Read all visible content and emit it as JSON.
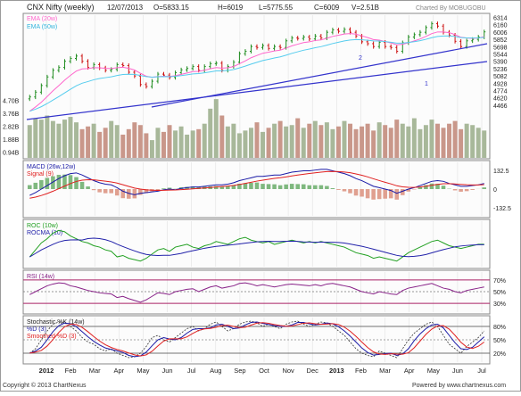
{
  "header": {
    "title": "CNX Nifty (weekly)",
    "date": "12/07/2013",
    "open": "O=5833.15",
    "high": "H=6019",
    "low": "L=5775.55",
    "close": "C=6009",
    "volume": "V=2.51B",
    "charted_by": "Charted By MOBUGOBU"
  },
  "footer": {
    "copyright": "Copyright © 2013 ChartNexus",
    "powered": "Powered by www.chartnexus.com"
  },
  "colors": {
    "up": "#1f8c1f",
    "down": "#cc1111",
    "ema20": "#ff66cc",
    "ema50": "#55ccee",
    "trend": "#3333cc",
    "vol_up": "#a8b89a",
    "vol_down": "#c9978a",
    "macd": "#1a1aa6",
    "signal": "#e02020",
    "hist_up": "#7fb87f",
    "hist_down": "#e0a090",
    "roc": "#22a022",
    "rocma": "#2222aa",
    "rsi": "#882288",
    "band": "#aa2266",
    "k": "#1a1aa6",
    "d_red": "#e02020",
    "kd_dash": "#333333"
  },
  "chart_data": [
    {
      "type": "candlestick",
      "title": "CNX Nifty (weekly)",
      "series": [
        {
          "name": "EMA (20w)"
        },
        {
          "name": "EMA (50w)"
        }
      ],
      "y_ticks": [
        4466,
        4620,
        4774,
        4928,
        5082,
        5236,
        5390,
        5544,
        5698,
        5852,
        6006,
        6160,
        6314
      ],
      "ylim": [
        4390,
        6360
      ],
      "annotations": [
        "1",
        "2"
      ],
      "price_path": [
        4640,
        4740,
        4880,
        5060,
        5200,
        5260,
        5390,
        5450,
        5500,
        5390,
        5260,
        5320,
        5250,
        5200,
        5220,
        5320,
        5300,
        5160,
        5080,
        4900,
        4860,
        4970,
        5120,
        5100,
        5050,
        5150,
        5210,
        5240,
        5280,
        5200,
        5280,
        5340,
        5350,
        5200,
        5280,
        5370,
        5550,
        5600,
        5700,
        5680,
        5720,
        5660,
        5700,
        5680,
        5820,
        5880,
        5870,
        5900,
        5860,
        5920,
        5880,
        6000,
        6050,
        6020,
        6060,
        6000,
        5920,
        5800,
        5760,
        5700,
        5790,
        5700,
        5680,
        5600,
        5780,
        5900,
        5950,
        6000,
        6100,
        6180,
        6130,
        6000,
        5940,
        5810,
        5700,
        5820,
        5850,
        5900,
        6009
      ]
    },
    {
      "type": "bar",
      "title": "Volume",
      "y_ticks": [
        "0.94B",
        "1.88B",
        "2.82B",
        "3.76B",
        "4.70B"
      ],
      "ylim": [
        0.5,
        5.2
      ],
      "values": [
        2.9,
        3.4,
        3.3,
        3.6,
        3.2,
        3.0,
        3.3,
        3.5,
        3.1,
        2.6,
        2.8,
        3.0,
        2.4,
        2.7,
        3.2,
        2.9,
        2.2,
        2.6,
        3.1,
        2.9,
        2.3,
        1.8,
        2.7,
        2.4,
        2.9,
        2.5,
        2.8,
        2.2,
        2.5,
        2.6,
        3.0,
        4.1,
        4.8,
        3.6,
        2.8,
        3.0,
        2.3,
        2.5,
        2.7,
        3.1,
        2.4,
        2.7,
        3.0,
        3.2,
        2.8,
        2.9,
        3.4,
        2.7,
        3.0,
        3.2,
        2.9,
        3.1,
        2.6,
        2.8,
        3.2,
        3.0,
        2.6,
        2.8,
        3.0,
        2.5,
        3.1,
        2.9,
        2.7,
        3.3,
        3.0,
        2.8,
        3.4,
        2.6,
        2.9,
        3.3,
        3.0,
        2.7,
        3.0,
        3.2,
        2.6,
        3.0,
        2.9,
        2.7,
        2.5
      ]
    },
    {
      "type": "line",
      "title": "MACD",
      "series": [
        {
          "name": "MACD (26w,12w)"
        },
        {
          "name": "Signal (9)"
        }
      ],
      "y_ticks": [
        "132.5",
        "0",
        "-132.5"
      ],
      "ylim": [
        -190,
        190
      ],
      "macd_path": [
        -45,
        -25,
        0,
        25,
        50,
        75,
        95,
        110,
        115,
        100,
        80,
        60,
        45,
        35,
        30,
        10,
        -15,
        -30,
        -40,
        -30,
        -25,
        -20,
        -15,
        -5,
        0,
        -5,
        5,
        10,
        15,
        15,
        20,
        25,
        30,
        30,
        35,
        45,
        60,
        70,
        80,
        90,
        90,
        95,
        100,
        100,
        110,
        120,
        125,
        130,
        130,
        135,
        140,
        140,
        130,
        120,
        110,
        95,
        75,
        60,
        40,
        20,
        10,
        0,
        -10,
        -30,
        -15,
        0,
        10,
        25,
        40,
        55,
        60,
        55,
        40,
        30,
        20,
        20,
        25,
        30,
        40
      ]
    },
    {
      "type": "line",
      "title": "ROC",
      "series": [
        {
          "name": "ROC (10w)"
        },
        {
          "name": "ROCMA (10)"
        }
      ],
      "roc_path": [
        -5,
        0,
        5,
        8,
        12,
        14,
        13,
        10,
        8,
        6,
        5,
        3,
        2,
        0,
        -1,
        -5,
        -4,
        -6,
        -7,
        -8,
        -6,
        -3,
        0,
        1,
        -1,
        2,
        3,
        4,
        2,
        1,
        3,
        4,
        6,
        5,
        4,
        6,
        8,
        9,
        7,
        6,
        5,
        6,
        4,
        5,
        6,
        7,
        6,
        5,
        6,
        5,
        6,
        5,
        4,
        3,
        2,
        0,
        -2,
        -3,
        -4,
        -6,
        -5,
        -6,
        -7,
        -8,
        -5,
        -2,
        0,
        2,
        4,
        6,
        7,
        5,
        3,
        2,
        1,
        2,
        3,
        4,
        4
      ]
    },
    {
      "type": "line",
      "title": "RSI",
      "series": [
        {
          "name": "RSI (14w)"
        }
      ],
      "y_ticks": [
        "70%",
        "50%",
        "30%"
      ],
      "ylim": [
        15,
        85
      ],
      "values": [
        45,
        50,
        55,
        60,
        63,
        65,
        64,
        60,
        58,
        55,
        52,
        50,
        48,
        47,
        46,
        40,
        42,
        38,
        35,
        32,
        36,
        42,
        48,
        47,
        45,
        50,
        52,
        54,
        55,
        50,
        54,
        58,
        60,
        56,
        58,
        60,
        64,
        65,
        63,
        60,
        62,
        60,
        58,
        60,
        62,
        63,
        62,
        61,
        60,
        62,
        60,
        63,
        64,
        62,
        60,
        58,
        54,
        50,
        48,
        46,
        50,
        48,
        46,
        45,
        52,
        56,
        58,
        60,
        62,
        64,
        60,
        56,
        54,
        50,
        48,
        52,
        54,
        56,
        58
      ]
    },
    {
      "type": "line",
      "title": "Stochastic",
      "series": [
        {
          "name": "Stochastic %K (14w)"
        },
        {
          "name": "%D (3)"
        },
        {
          "name": "Smoothed %D (3)"
        }
      ],
      "y_ticks": [
        "80%",
        "50%",
        "20%"
      ],
      "ylim": [
        0,
        100
      ],
      "x_labels": [
        "2012",
        "Feb",
        "Mar",
        "Apr",
        "May",
        "Jun",
        "Jul",
        "Aug",
        "Sep",
        "Oct",
        "Nov",
        "Dec",
        "2013",
        "Feb",
        "Mar",
        "Apr",
        "May",
        "Jun",
        "Jul"
      ],
      "k_path": [
        20,
        30,
        50,
        70,
        85,
        90,
        88,
        80,
        70,
        55,
        45,
        40,
        30,
        25,
        30,
        20,
        15,
        10,
        12,
        20,
        35,
        55,
        60,
        50,
        45,
        55,
        65,
        75,
        80,
        70,
        75,
        85,
        90,
        80,
        70,
        75,
        85,
        90,
        92,
        88,
        80,
        85,
        80,
        75,
        85,
        90,
        92,
        85,
        80,
        85,
        90,
        88,
        80,
        70,
        60,
        45,
        30,
        20,
        15,
        12,
        25,
        20,
        15,
        10,
        30,
        50,
        65,
        75,
        85,
        90,
        80,
        60,
        40,
        30,
        20,
        35,
        45,
        55,
        70
      ]
    }
  ]
}
